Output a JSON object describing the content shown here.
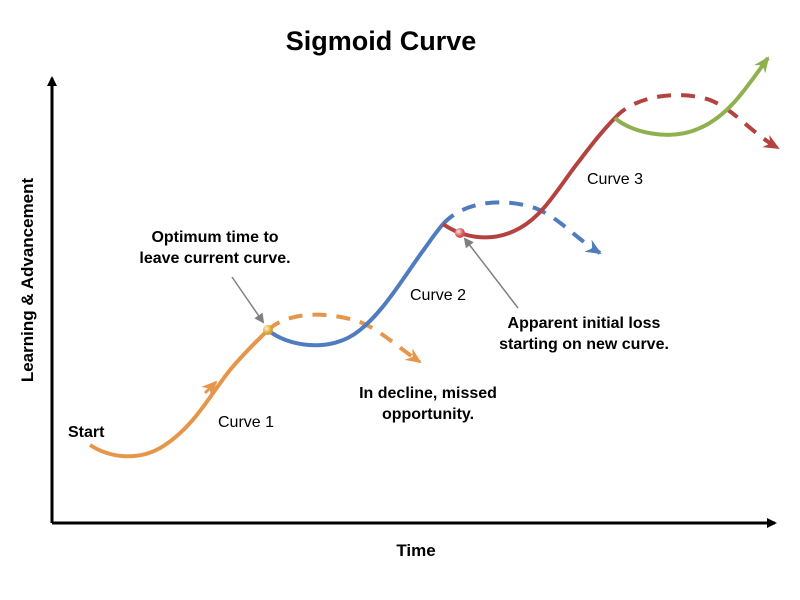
{
  "title": "Sigmoid Curve",
  "axes": {
    "x_label": "Time",
    "y_label": "Learning & Advancement"
  },
  "labels": {
    "start": "Start",
    "curve1": "Curve 1",
    "curve2": "Curve 2",
    "curve3": "Curve 3",
    "optimum": [
      "Optimum time to",
      "leave current curve."
    ],
    "decline": [
      "In decline, missed",
      "opportunity."
    ],
    "loss": [
      "Apparent initial loss",
      "starting on new curve."
    ]
  },
  "colors": {
    "curve1": "#e6964a",
    "curve2": "#4f7bbf",
    "curve3": "#b4423f",
    "curve4": "#8fb04e",
    "axis": "#000000",
    "pointer": "#808080"
  }
}
